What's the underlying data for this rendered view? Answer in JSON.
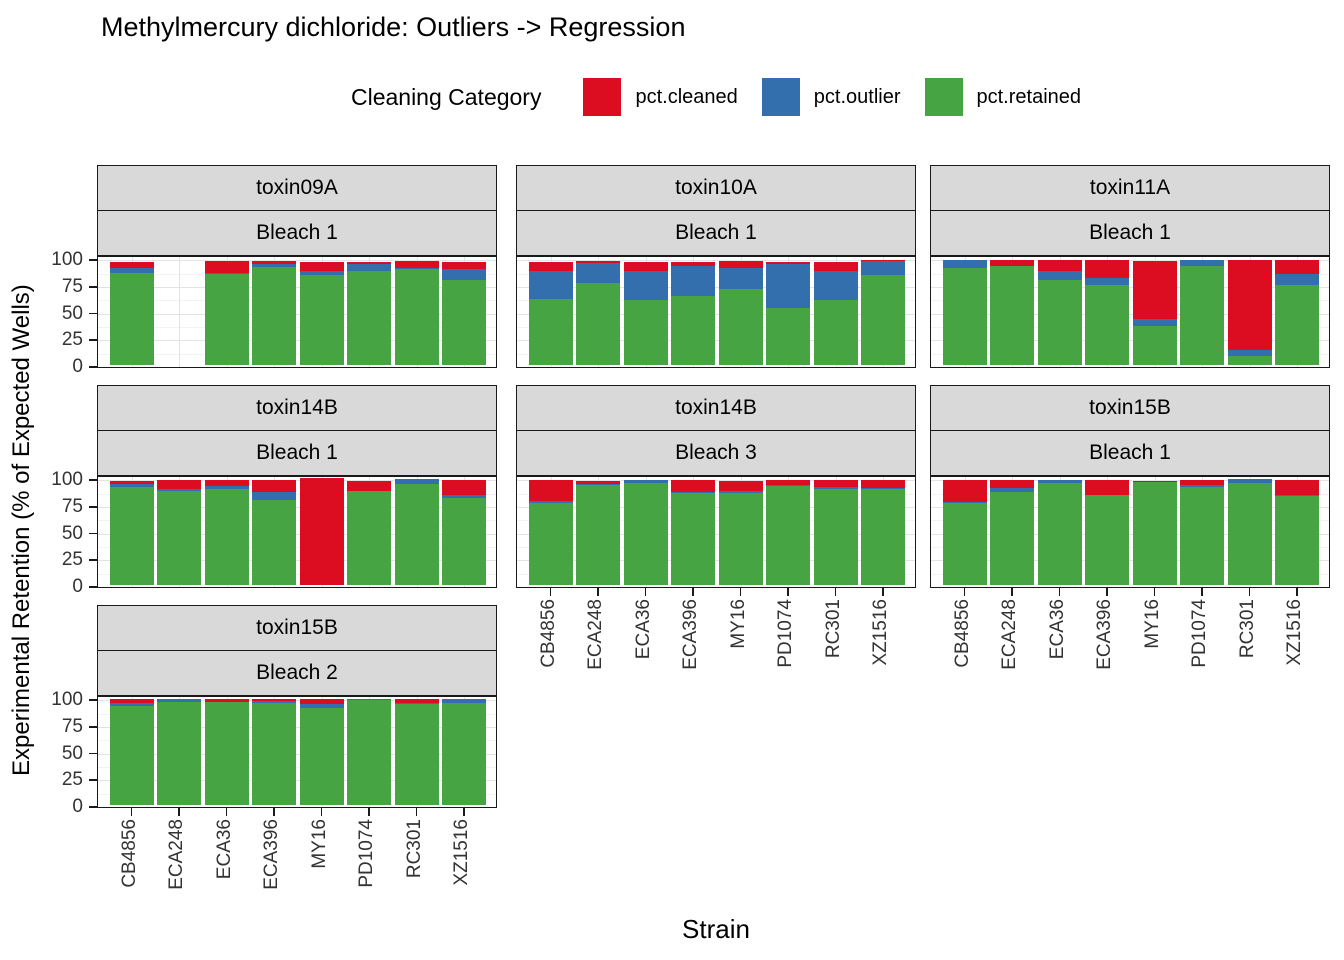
{
  "title": "Methylmercury dichloride: Outliers -> Regression",
  "legend": {
    "title": "Cleaning Category",
    "items": [
      {
        "label": "pct.cleaned",
        "color": "#DC0D21"
      },
      {
        "label": "pct.outlier",
        "color": "#336FAC"
      },
      {
        "label": "pct.retained",
        "color": "#46A542"
      }
    ]
  },
  "axes": {
    "y_title": "Experimental Retention (% of Expected Wells)",
    "x_title": "Strain",
    "y_tick_labels": [
      "100",
      "75",
      "50",
      "25",
      "0"
    ]
  },
  "chart_data": {
    "type": "bar",
    "stacked": true,
    "ylim": [
      0,
      100
    ],
    "grid": "major+minor",
    "legend_position": "top",
    "categories": [
      "CB4856",
      "ECA248",
      "ECA36",
      "ECA396",
      "MY16",
      "PD1074",
      "RC301",
      "XZ1516"
    ],
    "stack_order_top_to_bottom": [
      "pct.cleaned",
      "pct.outlier",
      "pct.retained"
    ],
    "colors": {
      "pct.cleaned": "#DC0D21",
      "pct.outlier": "#336FAC",
      "pct.retained": "#46A542"
    },
    "panels": [
      {
        "facet_top": "toxin09A",
        "facet_bottom": "Bleach 1",
        "row": 0,
        "col": 0,
        "values": {
          "pct.cleaned": [
            6,
            null,
            11.5,
            3,
            8.5,
            2,
            7,
            7
          ],
          "pct.outlier": [
            5,
            null,
            0.5,
            3,
            4.5,
            7,
            0.5,
            10
          ],
          "pct.retained": [
            86,
            null,
            85.5,
            91.5,
            84,
            88,
            90,
            80
          ]
        }
      },
      {
        "facet_top": "toxin10A",
        "facet_bottom": "Bleach 1",
        "row": 0,
        "col": 1,
        "values": {
          "pct.cleaned": [
            8.5,
            1.5,
            8.5,
            4,
            7,
            2.5,
            9,
            0.5
          ],
          "pct.outlier": [
            26.5,
            19,
            28,
            28,
            19,
            41.5,
            27,
            13.5
          ],
          "pct.retained": [
            62,
            77,
            60.5,
            65,
            71.5,
            53,
            61,
            84
          ]
        }
      },
      {
        "facet_top": "toxin11A",
        "facet_bottom": "Bleach 1",
        "row": 0,
        "col": 2,
        "values": {
          "pct.cleaned": [
            0,
            5.5,
            10,
            16,
            54,
            0,
            84,
            13
          ],
          "pct.outlier": [
            7,
            0.5,
            8.5,
            7,
            7,
            5.5,
            6,
            10
          ],
          "pct.retained": [
            91,
            92.5,
            79.5,
            75,
            36.5,
            92.5,
            8,
            75
          ]
        }
      },
      {
        "facet_top": "toxin14B",
        "facet_bottom": "Bleach 1",
        "row": 1,
        "col": 0,
        "values": {
          "pct.cleaned": [
            3,
            8.5,
            5.5,
            11,
            100,
            9,
            0,
            13.5
          ],
          "pct.outlier": [
            2.5,
            2,
            3,
            7,
            0,
            0.5,
            4,
            3
          ],
          "pct.retained": [
            92,
            88,
            89.5,
            80,
            0,
            88,
            95,
            81.5
          ]
        }
      },
      {
        "facet_top": "toxin14B",
        "facet_bottom": "Bleach 3",
        "row": 1,
        "col": 1,
        "values": {
          "pct.cleaned": [
            19,
            3,
            0,
            11,
            9,
            4.5,
            6,
            7.5
          ],
          "pct.outlier": [
            2,
            0.5,
            2,
            0.5,
            2,
            0.5,
            2,
            0.5
          ],
          "pct.retained": [
            77,
            94,
            96,
            86.5,
            86.5,
            93,
            90,
            90
          ]
        }
      },
      {
        "facet_top": "toxin15B",
        "facet_bottom": "Bleach 1",
        "row": 1,
        "col": 2,
        "values": {
          "pct.cleaned": [
            21,
            7,
            0,
            13.5,
            1,
            4,
            0,
            14
          ],
          "pct.outlier": [
            0.5,
            3.5,
            2,
            0.5,
            0,
            2,
            3,
            0.5
          ],
          "pct.retained": [
            77,
            87.5,
            96,
            84,
            96.5,
            92,
            96,
            83.5
          ]
        }
      },
      {
        "facet_top": "toxin15B",
        "facet_bottom": "Bleach 2",
        "row": 2,
        "col": 0,
        "values": {
          "pct.cleaned": [
            3,
            0,
            2,
            1.5,
            4.5,
            0,
            3.5,
            0
          ],
          "pct.outlier": [
            3,
            2,
            0.5,
            2,
            3.5,
            0.5,
            0.5,
            3
          ],
          "pct.retained": [
            93,
            97,
            96.5,
            95.5,
            91,
            98.5,
            95,
            96
          ]
        }
      }
    ]
  }
}
